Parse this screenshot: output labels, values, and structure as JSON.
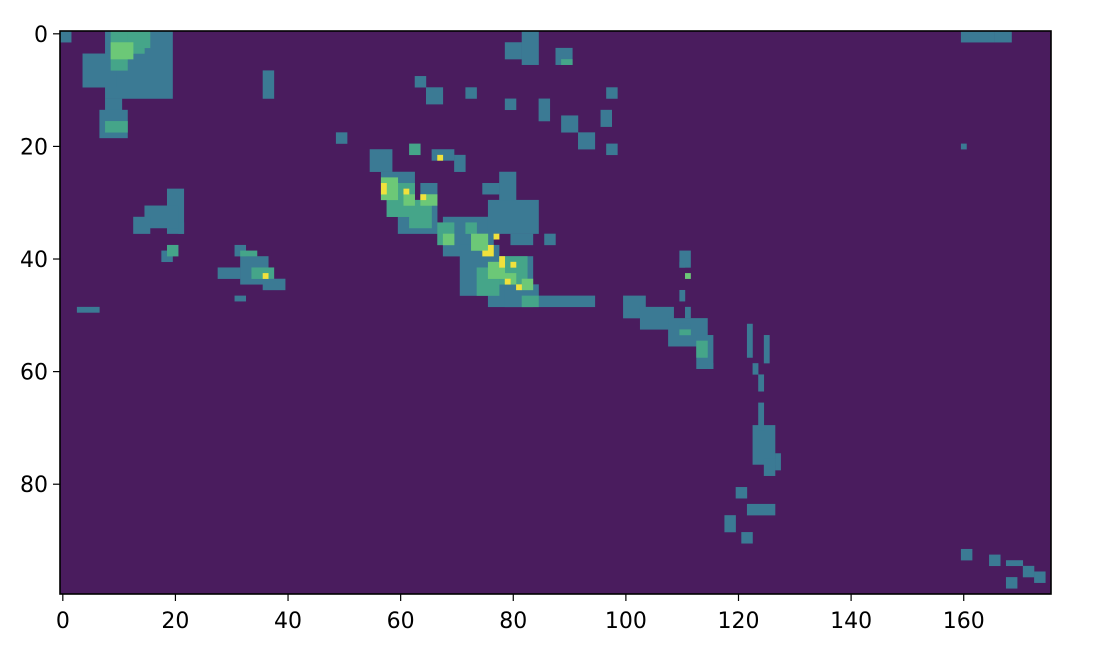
{
  "chart_data": {
    "type": "heatmap",
    "title": "",
    "xlabel": "",
    "ylabel": "",
    "grid": false,
    "legend": "none",
    "colormap": "viridis",
    "shape": [
      100,
      176
    ],
    "xlim": [
      -0.5,
      175.5
    ],
    "ylim": [
      99.5,
      -0.5
    ],
    "x_ticks": [
      0,
      20,
      40,
      60,
      80,
      100,
      120,
      140,
      160
    ],
    "y_ticks": [
      0,
      20,
      40,
      60,
      80
    ],
    "background_level": 0,
    "level_colors": [
      "#4a1c5e",
      "#3b7a94",
      "#45a589",
      "#6cc877",
      "#f0e13c"
    ],
    "note_levels": "0 = background, 1 = low, 2 = mid, 3 = high, 4 = peak",
    "cells": [
      {
        "level": 1,
        "rects": [
          [
            0,
            0,
            2,
            2
          ],
          [
            8,
            0,
            12,
            12
          ],
          [
            4,
            4,
            6,
            6
          ],
          [
            8,
            12,
            3,
            6
          ],
          [
            7,
            14,
            5,
            5
          ],
          [
            19,
            28,
            3,
            8
          ],
          [
            15,
            31,
            6,
            4
          ],
          [
            13,
            33,
            3,
            3
          ],
          [
            21,
            34,
            1,
            2
          ],
          [
            18,
            39,
            2,
            2
          ],
          [
            31,
            38,
            2,
            2
          ],
          [
            32,
            40,
            5,
            5
          ],
          [
            28,
            42,
            4,
            2
          ],
          [
            36,
            44,
            4,
            2
          ],
          [
            31,
            47,
            2,
            1
          ],
          [
            3,
            49,
            4,
            1
          ],
          [
            36,
            7,
            2,
            5
          ],
          [
            82,
            0,
            3,
            6
          ],
          [
            79,
            2,
            3,
            3
          ],
          [
            88,
            3,
            3,
            3
          ],
          [
            63,
            8,
            2,
            2
          ],
          [
            65,
            10,
            3,
            3
          ],
          [
            72,
            10,
            2,
            2
          ],
          [
            79,
            12,
            2,
            2
          ],
          [
            85,
            12,
            2,
            4
          ],
          [
            89,
            15,
            3,
            3
          ],
          [
            96,
            14,
            2,
            3
          ],
          [
            97,
            10,
            2,
            2
          ],
          [
            92,
            18,
            3,
            3
          ],
          [
            97,
            20,
            2,
            2
          ],
          [
            49,
            18,
            2,
            2
          ],
          [
            55,
            21,
            4,
            4
          ],
          [
            57,
            25,
            6,
            5
          ],
          [
            64,
            27,
            3,
            3
          ],
          [
            60,
            31,
            7,
            5
          ],
          [
            68,
            33,
            9,
            7
          ],
          [
            71,
            38,
            7,
            9
          ],
          [
            76,
            40,
            8,
            9
          ],
          [
            79,
            45,
            6,
            4
          ],
          [
            85,
            47,
            10,
            2
          ],
          [
            76,
            30,
            9,
            6
          ],
          [
            86,
            36,
            2,
            2
          ],
          [
            80,
            36,
            4,
            2
          ],
          [
            78,
            25,
            3,
            5
          ],
          [
            66,
            21,
            4,
            2
          ],
          [
            70,
            22,
            2,
            3
          ],
          [
            75,
            27,
            3,
            2
          ],
          [
            100,
            47,
            4,
            4
          ],
          [
            103,
            49,
            6,
            4
          ],
          [
            108,
            51,
            7,
            5
          ],
          [
            113,
            54,
            3,
            6
          ],
          [
            115,
            59,
            1,
            1
          ],
          [
            110,
            39,
            2,
            3
          ],
          [
            110,
            52,
            2,
            1
          ],
          [
            111,
            49,
            1,
            2
          ],
          [
            110,
            46,
            1,
            2
          ],
          [
            110,
            41,
            1,
            1
          ],
          [
            123,
            70,
            4,
            7
          ],
          [
            125,
            76,
            2,
            3
          ],
          [
            127,
            75,
            1,
            3
          ],
          [
            122,
            84,
            5,
            2
          ],
          [
            120,
            81,
            2,
            2
          ],
          [
            118,
            86,
            2,
            3
          ],
          [
            121,
            89,
            2,
            2
          ],
          [
            124,
            66,
            1,
            5
          ],
          [
            124,
            61,
            1,
            3
          ],
          [
            122,
            52,
            1,
            6
          ],
          [
            125,
            54,
            1,
            5
          ],
          [
            123,
            59,
            1,
            2
          ],
          [
            160,
            0,
            6,
            2
          ],
          [
            166,
            0,
            3,
            2
          ],
          [
            160,
            20,
            1,
            1
          ],
          [
            160,
            92,
            2,
            2
          ],
          [
            165,
            93,
            2,
            2
          ],
          [
            168,
            94,
            3,
            1
          ],
          [
            171,
            95,
            2,
            2
          ],
          [
            168,
            97,
            2,
            2
          ],
          [
            173,
            96,
            2,
            2
          ]
        ]
      },
      {
        "level": 2,
        "rects": [
          [
            9,
            0,
            6,
            4
          ],
          [
            12,
            0,
            4,
            3
          ],
          [
            9,
            4,
            3,
            3
          ],
          [
            8,
            16,
            4,
            2
          ],
          [
            19,
            38,
            2,
            2
          ],
          [
            32,
            39,
            3,
            1
          ],
          [
            34,
            42,
            4,
            2
          ],
          [
            58,
            27,
            5,
            6
          ],
          [
            62,
            30,
            4,
            5
          ],
          [
            67,
            34,
            3,
            4
          ],
          [
            72,
            34,
            2,
            2
          ],
          [
            74,
            42,
            4,
            5
          ],
          [
            78,
            40,
            5,
            5
          ],
          [
            82,
            47,
            3,
            2
          ],
          [
            62,
            20,
            2,
            2
          ],
          [
            60,
            28,
            3,
            2
          ],
          [
            113,
            55,
            2,
            3
          ],
          [
            110,
            53,
            2,
            1
          ],
          [
            89,
            5,
            2,
            1
          ]
        ]
      },
      {
        "level": 3,
        "rects": [
          [
            9,
            2,
            4,
            3
          ],
          [
            57,
            26,
            3,
            4
          ],
          [
            61,
            29,
            2,
            2
          ],
          [
            64,
            29,
            3,
            2
          ],
          [
            68,
            36,
            2,
            2
          ],
          [
            73,
            36,
            3,
            3
          ],
          [
            76,
            41,
            3,
            3
          ],
          [
            79,
            43,
            2,
            2
          ],
          [
            82,
            44,
            2,
            2
          ],
          [
            111,
            43,
            1,
            1
          ]
        ]
      },
      {
        "level": 4,
        "rects": [
          [
            57,
            27,
            1,
            2
          ],
          [
            61,
            28,
            1,
            1
          ],
          [
            64,
            29,
            1,
            1
          ],
          [
            67,
            22,
            1,
            1
          ],
          [
            76,
            38,
            1,
            2
          ],
          [
            77,
            36,
            1,
            1
          ],
          [
            78,
            40,
            1,
            2
          ],
          [
            80,
            41,
            1,
            1
          ],
          [
            79,
            44,
            1,
            1
          ],
          [
            75,
            39,
            1,
            1
          ],
          [
            36,
            43,
            1,
            1
          ],
          [
            81,
            45,
            1,
            1
          ]
        ]
      }
    ]
  }
}
